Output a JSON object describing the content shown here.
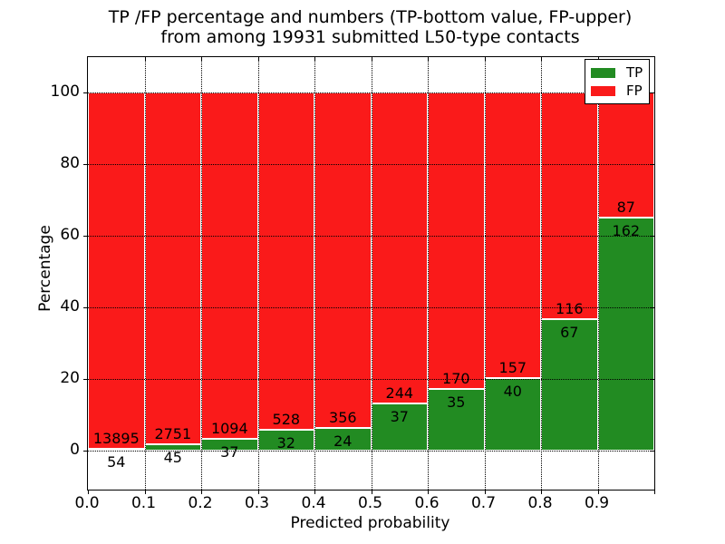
{
  "figure": {
    "title_line1": "TP /FP percentage and numbers (TP-bottom value, FP-upper)",
    "title_line2": "from among 19931 submitted L50-type contacts",
    "xlabel": "Predicted probability",
    "ylabel": "Percentage"
  },
  "colors": {
    "tp_green": "#228b22",
    "fp_red": "#fa1a1a",
    "axis_black": "#000000",
    "background": "#ffffff"
  },
  "chart_data": {
    "type": "bar",
    "stacked": true,
    "normalized_to_percent": true,
    "title": "TP /FP percentage and numbers (TP-bottom value, FP-upper)\nfrom among 19931 submitted L50-type contacts",
    "xlabel": "Predicted probability",
    "ylabel": "Percentage",
    "xlim": [
      0.0,
      1.0
    ],
    "ylim": [
      -11,
      110
    ],
    "bin_width": 0.1,
    "total_contacts": 19931,
    "grid": "dotted",
    "legend_position": "upper right",
    "categories": [
      "0.0",
      "0.1",
      "0.2",
      "0.3",
      "0.4",
      "0.5",
      "0.6",
      "0.7",
      "0.8",
      "0.9"
    ],
    "x_tick_labels": [
      "0.0",
      "0.1",
      "0.2",
      "0.3",
      "0.4",
      "0.5",
      "0.6",
      "0.7",
      "0.8",
      "0.9"
    ],
    "y_ticks": [
      0,
      20,
      40,
      60,
      80,
      100
    ],
    "series": [
      {
        "name": "TP",
        "color": "#228b22",
        "counts": [
          54,
          45,
          37,
          32,
          24,
          37,
          35,
          40,
          67,
          162
        ]
      },
      {
        "name": "FP",
        "color": "#fa1a1a",
        "counts": [
          13895,
          2751,
          1094,
          528,
          356,
          244,
          170,
          157,
          116,
          87
        ]
      }
    ]
  }
}
